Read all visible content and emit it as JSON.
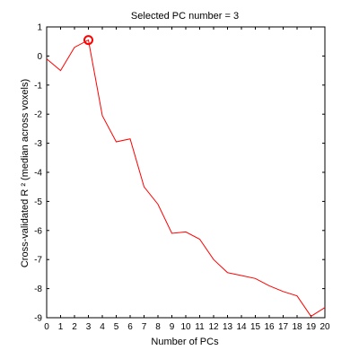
{
  "chart_data": {
    "type": "line",
    "title": "Selected PC number = 3",
    "xlabel": "Number of PCs",
    "ylabel": "Cross-validated R ² (median across voxels)",
    "xlim": [
      0,
      20
    ],
    "ylim": [
      -9,
      1
    ],
    "xticks": [
      0,
      1,
      2,
      3,
      4,
      5,
      6,
      7,
      8,
      9,
      10,
      11,
      12,
      13,
      14,
      15,
      16,
      17,
      18,
      19,
      20
    ],
    "yticks": [
      1,
      0,
      -1,
      -2,
      -3,
      -4,
      -5,
      -6,
      -7,
      -8,
      -9
    ],
    "grid": false,
    "line_color": "#ff0000",
    "marker_color": "#ff0000",
    "series": [
      {
        "x": [
          0,
          1,
          2,
          3,
          4,
          5,
          6,
          7,
          8,
          9,
          10,
          11,
          12,
          13,
          14,
          15,
          16,
          17,
          18,
          19,
          20
        ],
        "values": [
          -0.1,
          -0.5,
          0.3,
          0.55,
          -2.05,
          -2.95,
          -2.85,
          -4.5,
          -5.1,
          -6.1,
          -6.05,
          -6.3,
          -7.0,
          -7.45,
          -7.55,
          -7.65,
          -7.9,
          -8.1,
          -8.25,
          -8.95,
          -8.65
        ]
      }
    ],
    "highlight": {
      "x": 3,
      "y": 0.55
    }
  }
}
